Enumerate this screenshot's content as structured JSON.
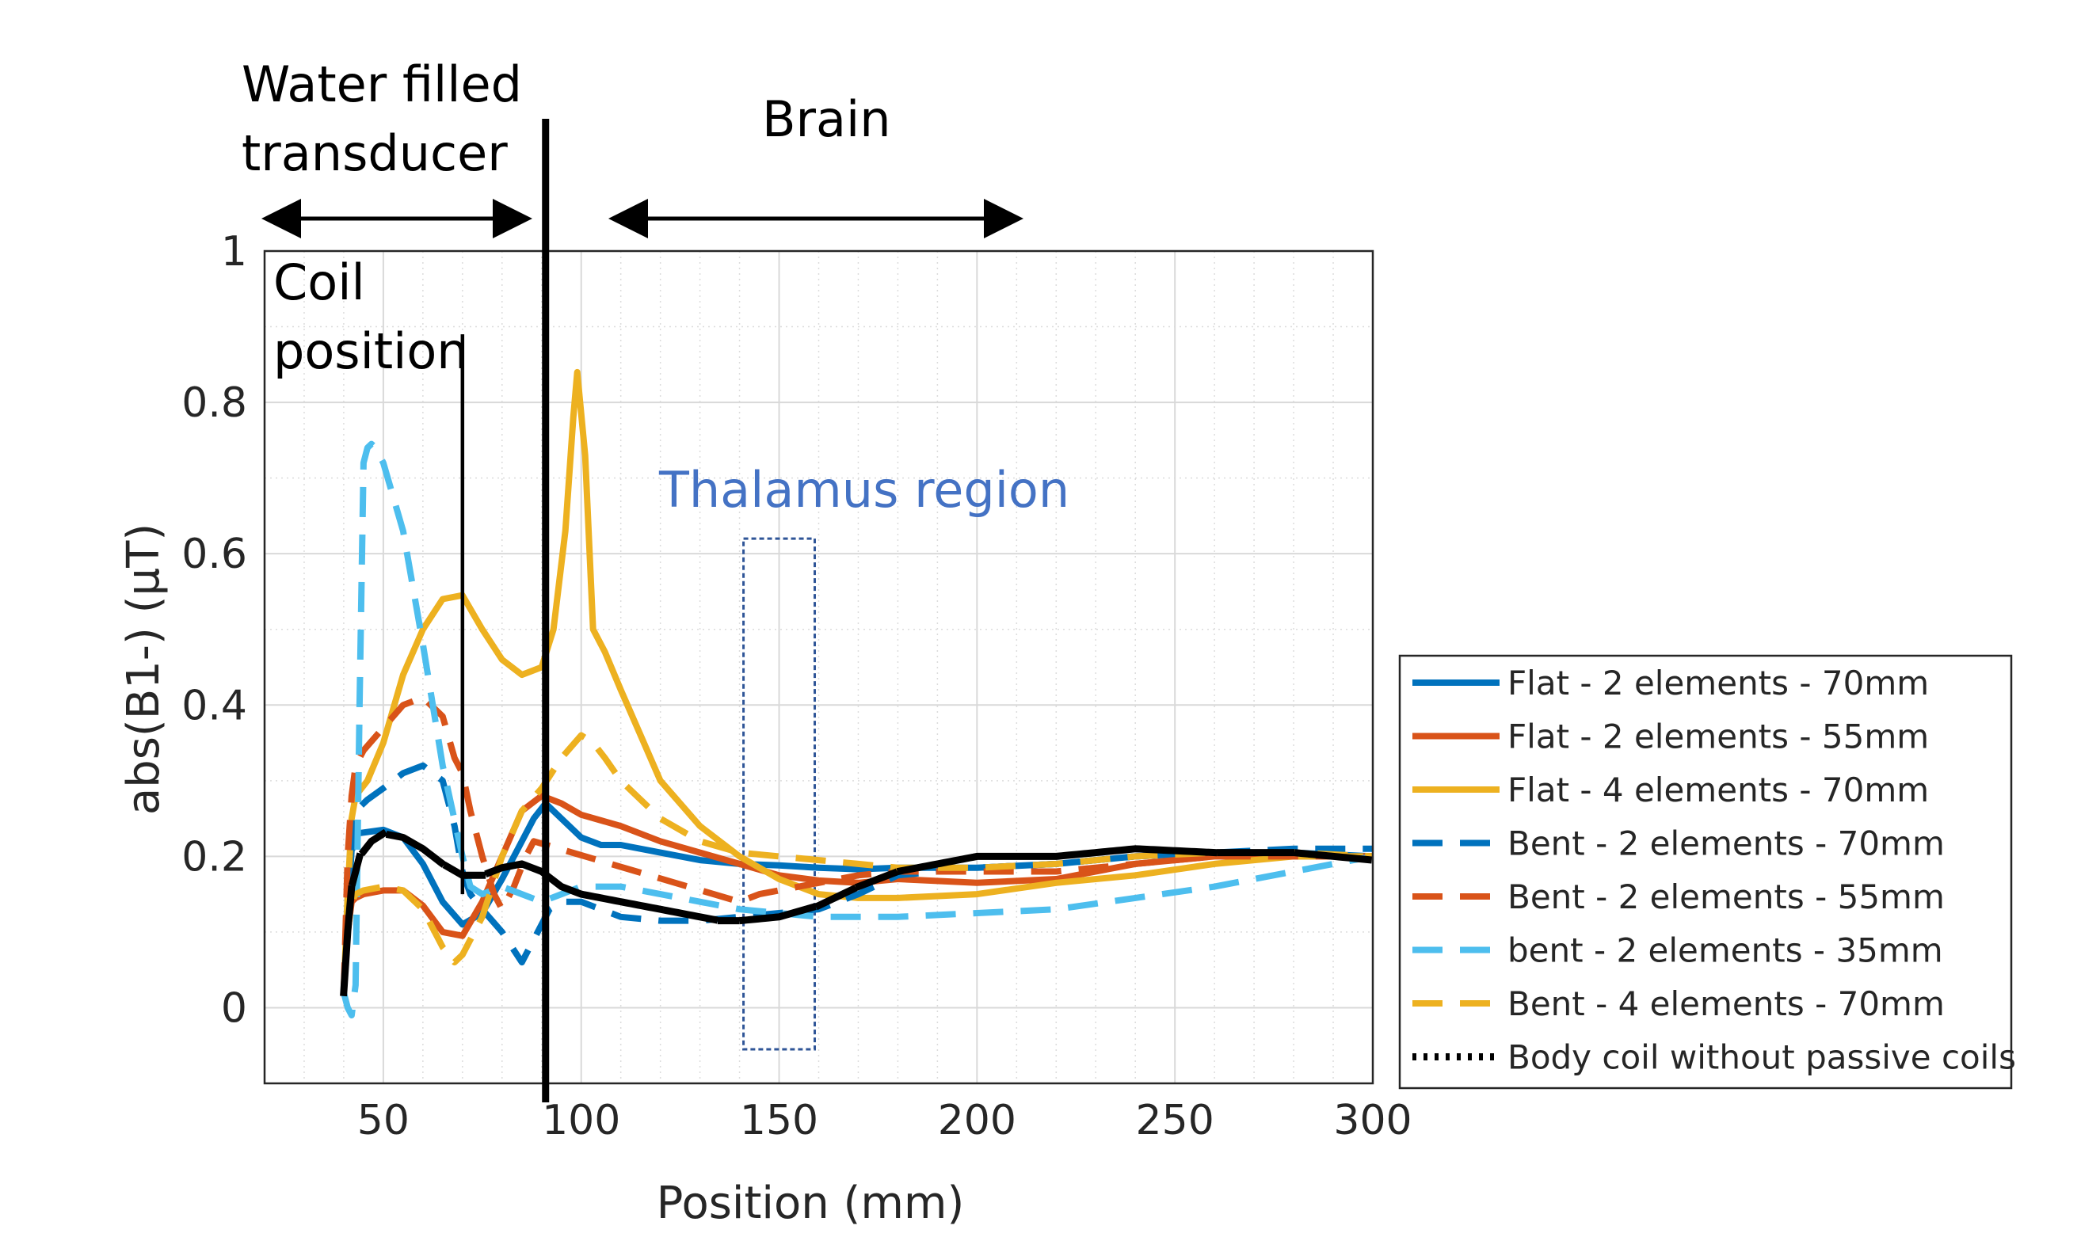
{
  "chart_data": {
    "type": "line",
    "title": "",
    "xlabel": "Position (mm)",
    "ylabel": "abs(B1-) (μT)",
    "xlim": [
      20,
      300
    ],
    "ylim": [
      -0.1,
      1
    ],
    "xticks": [
      50,
      100,
      150,
      200,
      250,
      300
    ],
    "yticks": [
      0,
      0.2,
      0.4,
      0.6,
      0.8,
      1
    ],
    "xtick_labels": [
      "50",
      "100",
      "150",
      "200",
      "250",
      "300"
    ],
    "ytick_labels": [
      "0",
      "0.2",
      "0.4",
      "0.6",
      "0.8",
      "1"
    ],
    "grid": true,
    "legend_position": "right",
    "series": [
      {
        "name": "Flat - 2 elements - 70mm",
        "color": "#0072bd",
        "style": "solid",
        "x": [
          40,
          41,
          42,
          43,
          50,
          55,
          60,
          65,
          70,
          75,
          80,
          85,
          88,
          91,
          95,
          100,
          105,
          110,
          120,
          130,
          140,
          150,
          160,
          170,
          180,
          200,
          220,
          240,
          260,
          280,
          300
        ],
        "y": [
          0.02,
          0.12,
          0.21,
          0.23,
          0.235,
          0.225,
          0.19,
          0.14,
          0.11,
          0.125,
          0.17,
          0.22,
          0.25,
          0.27,
          0.25,
          0.225,
          0.215,
          0.215,
          0.205,
          0.195,
          0.19,
          0.188,
          0.185,
          0.183,
          0.185,
          0.185,
          0.19,
          0.2,
          0.205,
          0.205,
          0.2
        ]
      },
      {
        "name": "Flat - 2 elements - 55mm",
        "color": "#d95319",
        "style": "solid",
        "x": [
          40,
          41,
          42,
          43,
          45,
          50,
          55,
          60,
          65,
          70,
          75,
          80,
          85,
          90,
          95,
          100,
          110,
          120,
          130,
          140,
          150,
          160,
          170,
          180,
          200,
          220,
          240,
          260,
          280,
          300
        ],
        "y": [
          0.02,
          0.1,
          0.14,
          0.145,
          0.15,
          0.155,
          0.155,
          0.135,
          0.1,
          0.095,
          0.14,
          0.2,
          0.26,
          0.28,
          0.27,
          0.255,
          0.24,
          0.22,
          0.205,
          0.19,
          0.175,
          0.168,
          0.165,
          0.17,
          0.165,
          0.17,
          0.19,
          0.2,
          0.2,
          0.2
        ]
      },
      {
        "name": "Flat - 4 elements - 70mm",
        "color": "#edb120",
        "style": "solid",
        "x": [
          40,
          41,
          42,
          43,
          46,
          50,
          55,
          60,
          65,
          70,
          75,
          80,
          85,
          90,
          93,
          96,
          98,
          99,
          101,
          103,
          106,
          110,
          115,
          120,
          130,
          140,
          150,
          160,
          170,
          180,
          200,
          220,
          240,
          260,
          280,
          300
        ],
        "y": [
          0.02,
          0.15,
          0.25,
          0.28,
          0.3,
          0.35,
          0.44,
          0.5,
          0.54,
          0.545,
          0.5,
          0.46,
          0.44,
          0.45,
          0.5,
          0.63,
          0.78,
          0.84,
          0.73,
          0.5,
          0.47,
          0.42,
          0.36,
          0.3,
          0.24,
          0.2,
          0.17,
          0.15,
          0.145,
          0.145,
          0.15,
          0.165,
          0.175,
          0.19,
          0.2,
          0.2
        ]
      },
      {
        "name": "Bent - 2 elements - 70mm",
        "color": "#0072bd",
        "style": "dashed",
        "x": [
          40,
          41,
          43,
          46,
          50,
          55,
          60,
          65,
          68,
          70,
          72,
          75,
          80,
          85,
          89,
          92,
          95,
          100,
          110,
          120,
          130,
          140,
          150,
          160,
          170,
          180,
          200,
          220,
          240,
          260,
          280,
          300
        ],
        "y": [
          0.02,
          0.14,
          0.26,
          0.275,
          0.29,
          0.31,
          0.32,
          0.3,
          0.24,
          0.18,
          0.15,
          0.13,
          0.1,
          0.06,
          0.1,
          0.13,
          0.14,
          0.14,
          0.12,
          0.115,
          0.115,
          0.12,
          0.125,
          0.13,
          0.15,
          0.175,
          0.185,
          0.19,
          0.2,
          0.205,
          0.21,
          0.21
        ]
      },
      {
        "name": "Bent - 2 elements - 55mm",
        "color": "#d95319",
        "style": "dashed",
        "x": [
          40,
          41,
          42,
          43,
          45,
          50,
          55,
          60,
          65,
          68,
          70,
          72,
          75,
          78,
          80,
          83,
          86,
          88,
          140,
          145,
          150,
          160,
          170,
          180,
          200,
          220,
          240,
          260,
          280,
          300
        ],
        "y": [
          0.02,
          0.2,
          0.28,
          0.32,
          0.34,
          0.37,
          0.4,
          0.41,
          0.385,
          0.33,
          0.31,
          0.26,
          0.2,
          0.15,
          0.13,
          0.16,
          0.2,
          0.22,
          0.14,
          0.15,
          0.155,
          0.165,
          0.175,
          0.18,
          0.18,
          0.18,
          0.19,
          0.2,
          0.2,
          0.2
        ]
      },
      {
        "name": "bent - 2 elements - 35mm",
        "color": "#4dbeee",
        "style": "dashed",
        "x": [
          40,
          41,
          42,
          43,
          44,
          45,
          46,
          47,
          48,
          50,
          55,
          60,
          65,
          70,
          72,
          75,
          80,
          85,
          90,
          95,
          100,
          110,
          120,
          130,
          140,
          150,
          160,
          170,
          180,
          200,
          220,
          240,
          260,
          280,
          300
        ],
        "y": [
          0.02,
          0.0,
          -0.01,
          0.03,
          0.4,
          0.72,
          0.74,
          0.745,
          0.74,
          0.72,
          0.63,
          0.48,
          0.32,
          0.2,
          0.16,
          0.15,
          0.16,
          0.15,
          0.14,
          0.15,
          0.16,
          0.16,
          0.15,
          0.14,
          0.13,
          0.125,
          0.12,
          0.12,
          0.12,
          0.125,
          0.13,
          0.145,
          0.16,
          0.18,
          0.2
        ]
      },
      {
        "name": "Bent - 4 elements - 70mm",
        "color": "#edb120",
        "style": "dashed",
        "x": [
          40,
          41,
          42,
          43,
          45,
          50,
          55,
          60,
          65,
          68,
          70,
          75,
          80,
          85,
          90,
          95,
          100,
          103,
          106,
          110,
          120,
          130,
          140,
          150,
          160,
          170,
          180,
          200,
          220,
          240,
          260,
          280,
          300
        ],
        "y": [
          0.02,
          0.1,
          0.14,
          0.15,
          0.155,
          0.16,
          0.155,
          0.13,
          0.08,
          0.06,
          0.07,
          0.12,
          0.2,
          0.26,
          0.29,
          0.33,
          0.36,
          0.35,
          0.33,
          0.3,
          0.25,
          0.22,
          0.205,
          0.2,
          0.195,
          0.19,
          0.185,
          0.185,
          0.19,
          0.2,
          0.205,
          0.205,
          0.2
        ]
      },
      {
        "name": "Body coil without passive coils",
        "color": "#000000",
        "style": "dotted",
        "x": [
          40,
          41,
          42,
          44,
          47,
          50,
          55,
          60,
          65,
          70,
          75,
          80,
          85,
          90,
          95,
          100,
          110,
          120,
          130,
          135,
          140,
          150,
          160,
          170,
          180,
          200,
          220,
          240,
          260,
          280,
          300
        ],
        "y": [
          0.02,
          0.1,
          0.16,
          0.2,
          0.22,
          0.23,
          0.225,
          0.21,
          0.19,
          0.175,
          0.175,
          0.185,
          0.19,
          0.18,
          0.16,
          0.15,
          0.14,
          0.13,
          0.12,
          0.115,
          0.115,
          0.12,
          0.135,
          0.16,
          0.18,
          0.2,
          0.2,
          0.21,
          0.205,
          0.205,
          0.195
        ]
      }
    ],
    "annotations": {
      "region_left": "Water filled transducer",
      "region_left_line1": "Water filled",
      "region_left_line2": "transducer",
      "region_right": "Brain",
      "coil_label_line1": "Coil",
      "coil_label_line2": "position",
      "thalamus": "Thalamus region"
    }
  }
}
